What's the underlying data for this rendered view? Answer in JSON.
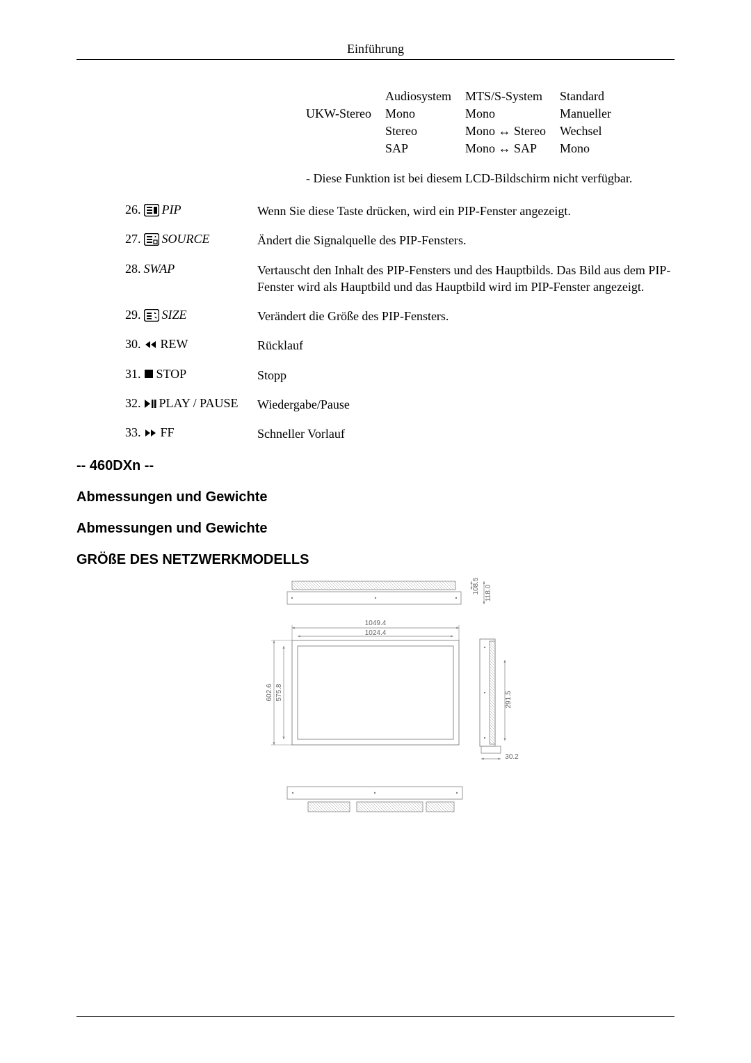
{
  "header": "Einführung",
  "audio_table": {
    "rows": [
      [
        "",
        "Audiosystem",
        "MTS/S-System",
        "Standard"
      ],
      [
        "UKW-Stereo",
        "Mono",
        "Mono",
        "Manueller"
      ],
      [
        "",
        "Stereo",
        "Mono ↔ Stereo",
        "Wechsel"
      ],
      [
        "",
        "SAP",
        "Mono ↔ SAP",
        "Mono"
      ]
    ]
  },
  "note": "- Diese Funktion ist bei diesem LCD-Bildschirm nicht verfügbar.",
  "items": [
    {
      "num": "26.",
      "icon": "pip",
      "label": "PIP",
      "italic": true,
      "desc": "Wenn Sie diese Taste drücken, wird ein PIP-Fenster angezeigt."
    },
    {
      "num": "27.",
      "icon": "source",
      "label": "SOURCE",
      "italic": true,
      "desc": "Ändert die Signalquelle des PIP-Fensters."
    },
    {
      "num": "28.",
      "icon": "",
      "label": "SWAP",
      "italic": true,
      "desc": "Vertauscht den Inhalt des PIP-Fensters und des Hauptbilds. Das Bild aus dem PIP-Fenster wird als Hauptbild und das Hauptbild wird im PIP-Fenster angezeigt."
    },
    {
      "num": "29.",
      "icon": "size",
      "label": "SIZE",
      "italic": true,
      "desc": "Verändert die Größe des PIP-Fensters."
    },
    {
      "num": "30.",
      "icon": "rew",
      "label": "REW",
      "italic": false,
      "desc": "Rücklauf"
    },
    {
      "num": "31.",
      "icon": "stop",
      "label": "STOP",
      "italic": false,
      "desc": "Stopp"
    },
    {
      "num": "32.",
      "icon": "play",
      "label": "PLAY / PAUSE",
      "italic": false,
      "desc": "Wiedergabe/Pause"
    },
    {
      "num": "33.",
      "icon": "ff",
      "label": "FF",
      "italic": false,
      "desc": "Schneller Vorlauf"
    }
  ],
  "headings": {
    "model": "-- 460DXn --",
    "dim1": "Abmessungen und Gewichte",
    "dim2": "Abmessungen und Gewichte",
    "net": "GRÖßE DES NETZWERKMODELLS"
  },
  "diagram": {
    "top_width": "1049.4",
    "inner_width": "1024.4",
    "left_height": "602.6",
    "inner_height": "575.8",
    "right_depth_top": "108.5",
    "right_upper": "118.0",
    "right_mid": "291.5",
    "right_bottom": "30.2",
    "stroke": "#808080",
    "hatch": "#9a9a9a",
    "label_size": 10,
    "bg": "#ffffff"
  }
}
